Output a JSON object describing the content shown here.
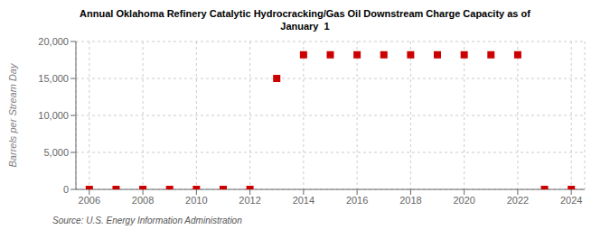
{
  "chart_data": {
    "type": "scatter",
    "title": "Annual Oklahoma Refinery Catalytic Hydrocracking/Gas Oil Downstream Charge Capacity as of\nJanuary  1",
    "ylabel": "Barrels per Stream Day",
    "annotations": [
      "Source: U.S. Energy Information Administration"
    ],
    "x": [
      2006,
      2007,
      2008,
      2009,
      2010,
      2011,
      2012,
      2013,
      2014,
      2015,
      2016,
      2017,
      2018,
      2019,
      2020,
      2021,
      2022,
      2023,
      2024
    ],
    "values": [
      0,
      0,
      0,
      0,
      0,
      0,
      0,
      15000,
      18200,
      18200,
      18200,
      18200,
      18200,
      18200,
      18200,
      18200,
      18200,
      0,
      0
    ],
    "color": "#cc0000",
    "marker": "square",
    "xlim": [
      2005.5,
      2024.5
    ],
    "xticks": [
      2006,
      2008,
      2010,
      2012,
      2014,
      2016,
      2018,
      2020,
      2022,
      2024
    ],
    "ylim": [
      0,
      20000
    ],
    "yticks": [
      0,
      {
        "value": 5000,
        "label": "5,000"
      },
      {
        "value": 10000,
        "label": "10,000"
      },
      {
        "value": 15000,
        "label": "15,000"
      },
      {
        "value": 20000,
        "label": "20,000"
      }
    ],
    "grid": true
  }
}
